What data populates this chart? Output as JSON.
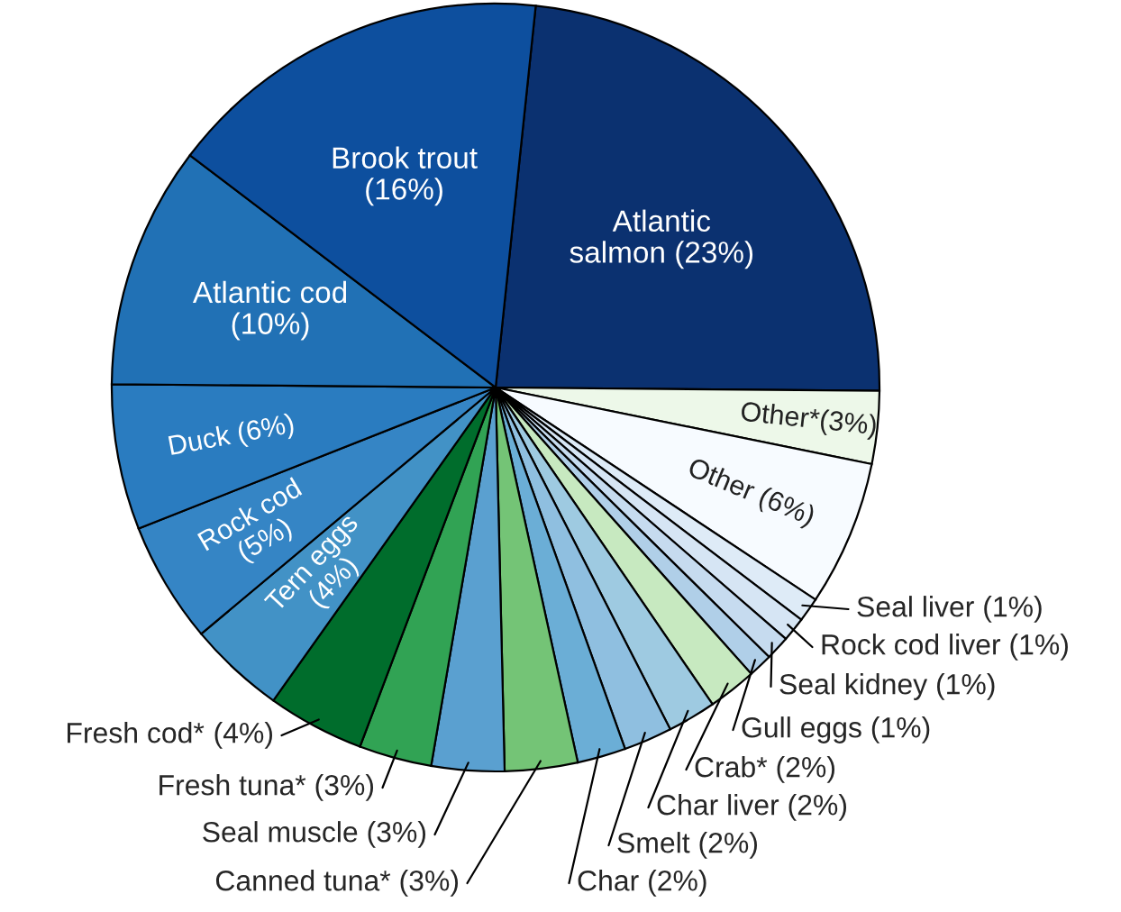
{
  "chart_data": {
    "type": "pie",
    "categories": [
      "Atlantic salmon",
      "Other*",
      "Other",
      "Seal liver",
      "Rock cod liver",
      "Seal kidney",
      "Gull eggs",
      "Crab*",
      "Char liver",
      "Smelt",
      "Char",
      "Canned tuna*",
      "Seal muscle",
      "Fresh tuna*",
      "Fresh cod*",
      "Tern eggs",
      "Rock cod",
      "Duck",
      "Atlantic cod",
      "Brook trout"
    ],
    "values": [
      23,
      3,
      6,
      1,
      1,
      1,
      1,
      2,
      2,
      2,
      2,
      3,
      3,
      3,
      4,
      4,
      5,
      6,
      10,
      16
    ],
    "value_labels": [
      "(23%)",
      "(3%)",
      "(6%)",
      "(1%)",
      "(1%)",
      "(1%)",
      "(1%)",
      "(2%)",
      "(2%)",
      "(2%)",
      "(2%)",
      "(3%)",
      "(3%)",
      "(3%)",
      "(4%)",
      "(4%)",
      "(5%)",
      "(6%)",
      "(10%)",
      "(16%)"
    ],
    "colors": [
      "#0b3170",
      "#edf8e9",
      "#f7fbff",
      "#deebf7",
      "#d6e5f4",
      "#c6dbef",
      "#b0cfe8",
      "#c7e9c0",
      "#9ecae1",
      "#8fbfe0",
      "#6baed6",
      "#74c476",
      "#5aa0d0",
      "#31a354",
      "#006d2c",
      "#4292c6",
      "#3585c5",
      "#2a7cc0",
      "#2171b5",
      "#0d4f9e"
    ],
    "legend": false
  }
}
